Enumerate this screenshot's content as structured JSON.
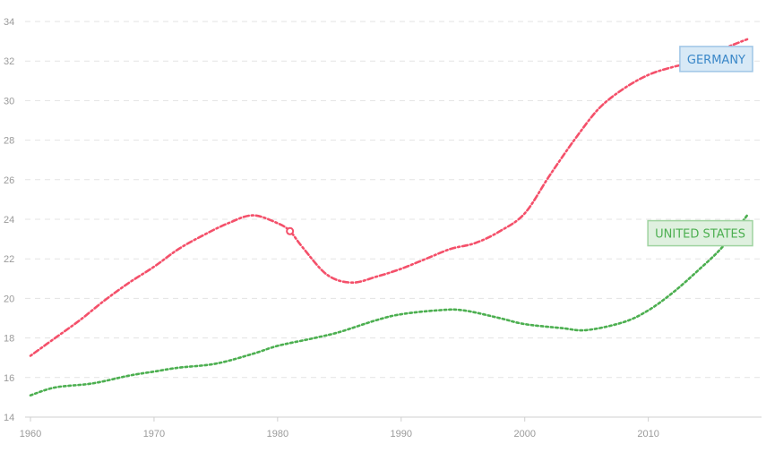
{
  "chart_data": {
    "type": "line",
    "title": "",
    "xlabel": "",
    "ylabel": "",
    "xlim": [
      1960,
      2018
    ],
    "ylim": [
      14,
      34
    ],
    "x_ticks": [
      "1960",
      "1970",
      "1980",
      "1990",
      "2000",
      "2010"
    ],
    "y_ticks": [
      "14",
      "16",
      "18",
      "20",
      "22",
      "24",
      "26",
      "28",
      "30",
      "32",
      "34"
    ],
    "grid": true,
    "series": [
      {
        "name": "GERMANY",
        "color": "#f4506a",
        "label_bg": "#d8e9f6",
        "label_border": "#9fc6e6",
        "label_color": "#3a87c8",
        "x": [
          1960,
          1962,
          1964,
          1966,
          1968,
          1970,
          1972,
          1974,
          1976,
          1978,
          1980,
          1981,
          1982,
          1984,
          1986,
          1988,
          1990,
          1992,
          1994,
          1996,
          1998,
          2000,
          2002,
          2004,
          2006,
          2008,
          2010,
          2012,
          2014,
          2016,
          2018
        ],
        "values": [
          17.1,
          18.0,
          18.9,
          19.9,
          20.8,
          21.6,
          22.5,
          23.2,
          23.8,
          24.2,
          23.8,
          23.4,
          22.6,
          21.2,
          20.8,
          21.1,
          21.5,
          22.0,
          22.5,
          22.8,
          23.4,
          24.3,
          26.2,
          28.0,
          29.6,
          30.6,
          31.3,
          31.7,
          32.0,
          32.6,
          33.1
        ]
      },
      {
        "name": "UNITED STATES",
        "color": "#4caf50",
        "label_bg": "#dff0df",
        "label_border": "#9fd3a0",
        "label_color": "#4caf50",
        "x": [
          1960,
          1962,
          1965,
          1968,
          1970,
          1972,
          1975,
          1978,
          1980,
          1983,
          1985,
          1988,
          1990,
          1993,
          1995,
          1998,
          2000,
          2003,
          2005,
          2008,
          2010,
          2012,
          2014,
          2016,
          2018
        ],
        "values": [
          15.1,
          15.5,
          15.7,
          16.1,
          16.3,
          16.5,
          16.7,
          17.2,
          17.6,
          18.0,
          18.3,
          18.9,
          19.2,
          19.4,
          19.4,
          19.0,
          18.7,
          18.5,
          18.4,
          18.8,
          19.4,
          20.3,
          21.4,
          22.6,
          24.2
        ]
      }
    ],
    "highlight_point": {
      "series": "GERMANY",
      "x": 1981,
      "y": 23.4
    }
  }
}
